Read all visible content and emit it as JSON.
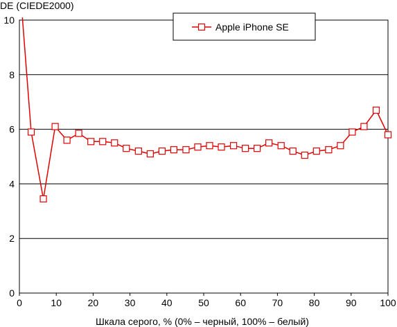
{
  "chart_data": {
    "type": "line",
    "title": "",
    "ylabel": "DE (CIEDE2000)",
    "xlabel": "Шкала серого, % (0% – черный, 100% – белый)",
    "xlim": [
      0,
      100
    ],
    "ylim": [
      0,
      10
    ],
    "xticks": [
      "0",
      "10",
      "20",
      "30",
      "40",
      "50",
      "60",
      "70",
      "80",
      "90",
      "100"
    ],
    "yticks": [
      "0",
      "2",
      "4",
      "6",
      "8",
      "10"
    ],
    "grid": "horizontal",
    "legend_position": "top-right",
    "series": [
      {
        "name": "Apple iPhone SE",
        "color": "#e00000",
        "marker": "square",
        "start_point": {
          "x": 0.8,
          "y": 10.1
        },
        "x": [
          3.2,
          6.5,
          9.7,
          12.9,
          16.1,
          19.4,
          22.6,
          25.8,
          29.0,
          32.3,
          35.5,
          38.7,
          41.9,
          45.2,
          48.4,
          51.6,
          54.8,
          58.1,
          61.3,
          64.5,
          67.7,
          71.0,
          74.2,
          77.4,
          80.6,
          83.9,
          87.1,
          90.3,
          93.5,
          96.8,
          100
        ],
        "values": [
          5.9,
          3.45,
          6.1,
          5.6,
          5.85,
          5.55,
          5.55,
          5.5,
          5.3,
          5.2,
          5.1,
          5.2,
          5.25,
          5.25,
          5.35,
          5.4,
          5.35,
          5.4,
          5.3,
          5.3,
          5.5,
          5.4,
          5.2,
          5.05,
          5.2,
          5.25,
          5.4,
          5.9,
          6.1,
          6.7,
          5.8
        ]
      }
    ]
  }
}
